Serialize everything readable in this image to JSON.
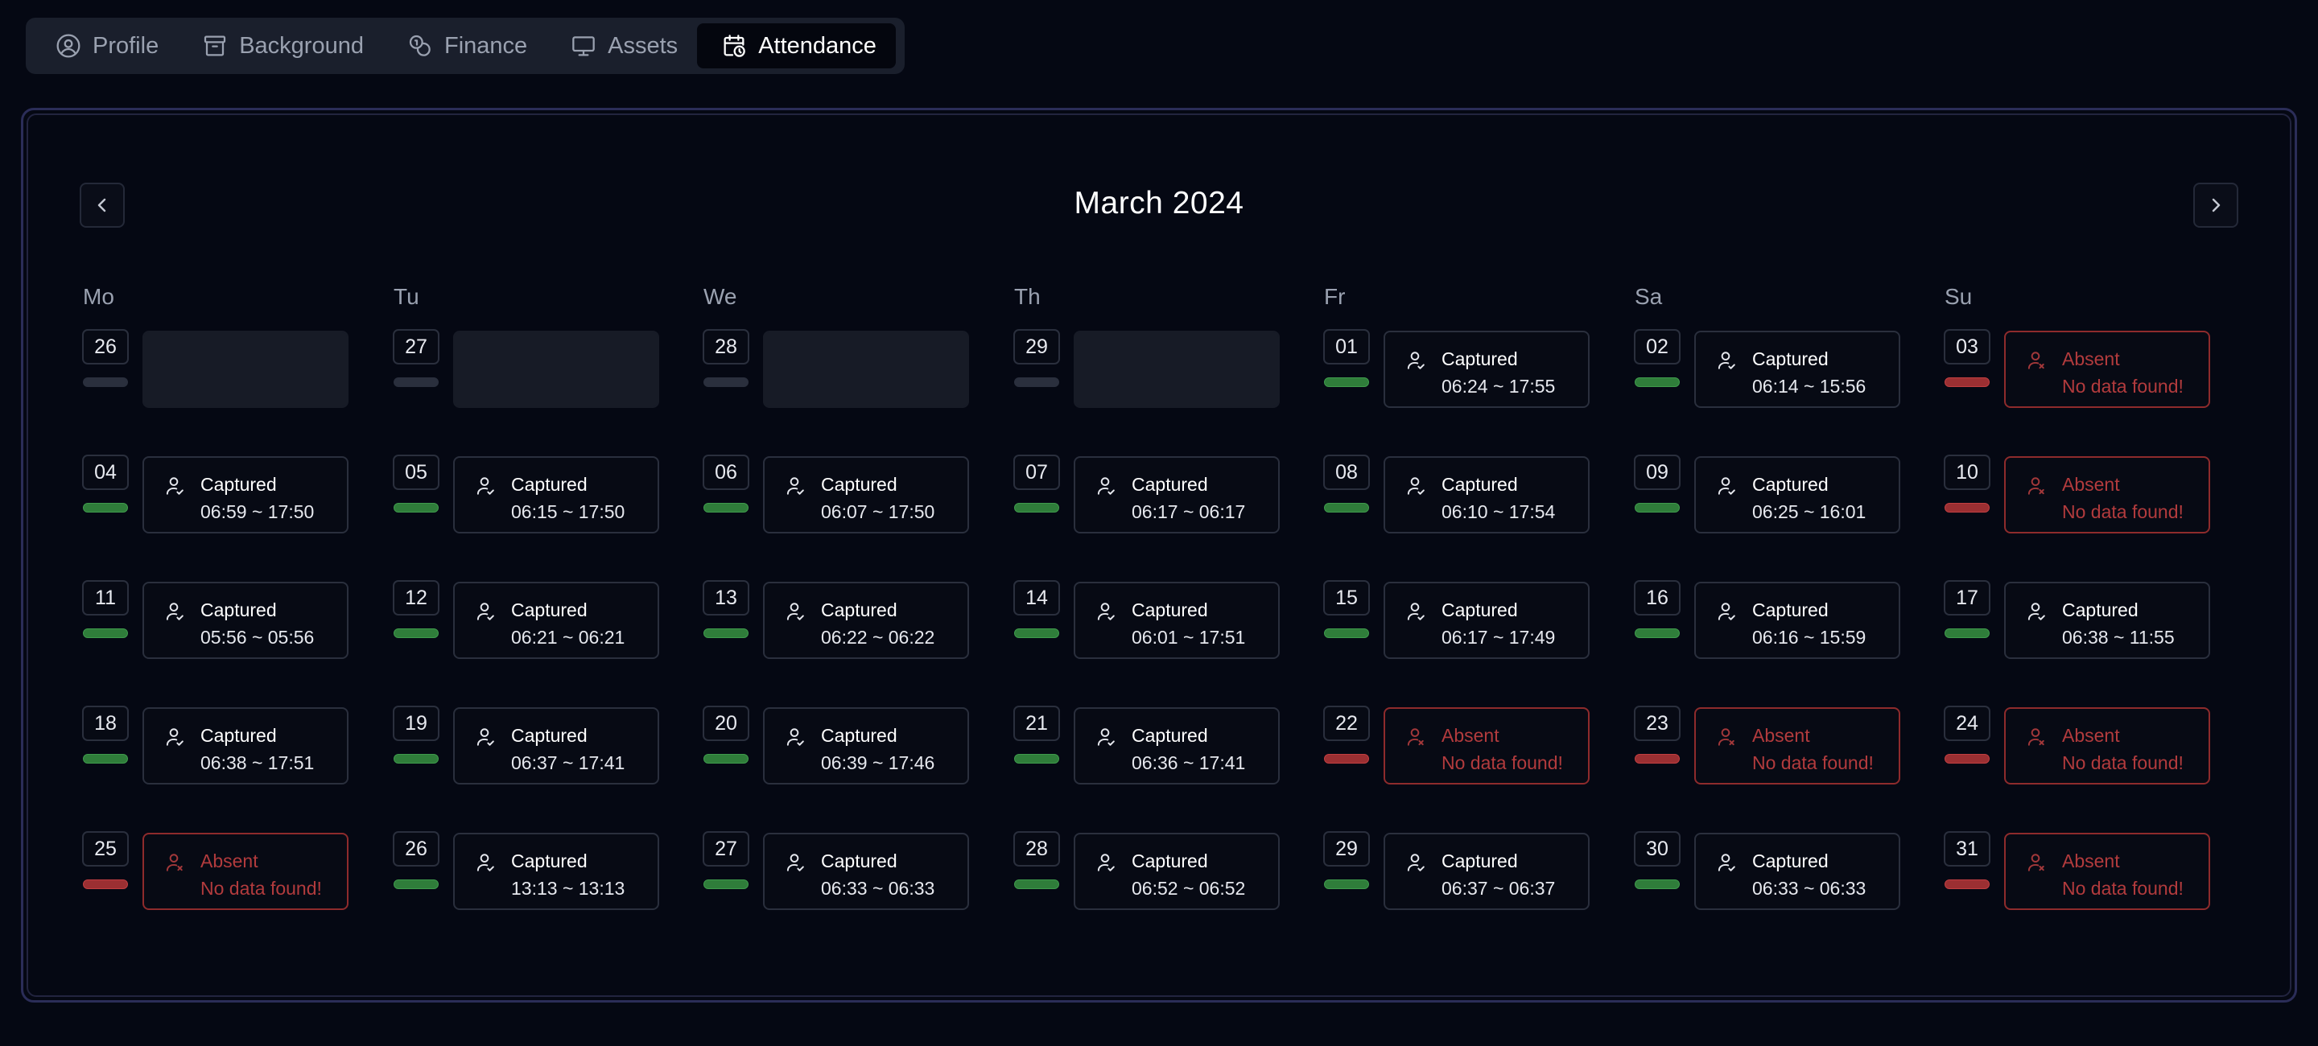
{
  "tabs": [
    {
      "label": "Profile",
      "icon": "user-circle-icon",
      "active": false
    },
    {
      "label": "Background",
      "icon": "archive-icon",
      "active": false
    },
    {
      "label": "Finance",
      "icon": "coins-icon",
      "active": false
    },
    {
      "label": "Assets",
      "icon": "monitor-icon",
      "active": false
    },
    {
      "label": "Attendance",
      "icon": "calendar-clock-icon",
      "active": true
    }
  ],
  "calendar": {
    "month_title": "March 2024",
    "weekdays": [
      "Mo",
      "Tu",
      "We",
      "Th",
      "Fr",
      "Sa",
      "Su"
    ],
    "weeks": [
      [
        {
          "date": "26",
          "status": "none"
        },
        {
          "date": "27",
          "status": "none"
        },
        {
          "date": "28",
          "status": "none"
        },
        {
          "date": "29",
          "status": "none"
        },
        {
          "date": "01",
          "status": "captured",
          "line1": "Captured",
          "line2": "06:24 ~ 17:55"
        },
        {
          "date": "02",
          "status": "captured",
          "line1": "Captured",
          "line2": "06:14 ~ 15:56"
        },
        {
          "date": "03",
          "status": "absent",
          "line1": "Absent",
          "line2": "No data found!"
        }
      ],
      [
        {
          "date": "04",
          "status": "captured",
          "line1": "Captured",
          "line2": "06:59 ~ 17:50"
        },
        {
          "date": "05",
          "status": "captured",
          "line1": "Captured",
          "line2": "06:15 ~ 17:50"
        },
        {
          "date": "06",
          "status": "captured",
          "line1": "Captured",
          "line2": "06:07 ~ 17:50"
        },
        {
          "date": "07",
          "status": "captured",
          "line1": "Captured",
          "line2": "06:17 ~ 06:17"
        },
        {
          "date": "08",
          "status": "captured",
          "line1": "Captured",
          "line2": "06:10 ~ 17:54"
        },
        {
          "date": "09",
          "status": "captured",
          "line1": "Captured",
          "line2": "06:25 ~ 16:01"
        },
        {
          "date": "10",
          "status": "absent",
          "line1": "Absent",
          "line2": "No data found!"
        }
      ],
      [
        {
          "date": "11",
          "status": "captured",
          "line1": "Captured",
          "line2": "05:56 ~ 05:56"
        },
        {
          "date": "12",
          "status": "captured",
          "line1": "Captured",
          "line2": "06:21 ~ 06:21"
        },
        {
          "date": "13",
          "status": "captured",
          "line1": "Captured",
          "line2": "06:22 ~ 06:22"
        },
        {
          "date": "14",
          "status": "captured",
          "line1": "Captured",
          "line2": "06:01 ~ 17:51"
        },
        {
          "date": "15",
          "status": "captured",
          "line1": "Captured",
          "line2": "06:17 ~ 17:49"
        },
        {
          "date": "16",
          "status": "captured",
          "line1": "Captured",
          "line2": "06:16 ~ 15:59"
        },
        {
          "date": "17",
          "status": "captured",
          "line1": "Captured",
          "line2": "06:38 ~ 11:55"
        }
      ],
      [
        {
          "date": "18",
          "status": "captured",
          "line1": "Captured",
          "line2": "06:38 ~ 17:51"
        },
        {
          "date": "19",
          "status": "captured",
          "line1": "Captured",
          "line2": "06:37 ~ 17:41"
        },
        {
          "date": "20",
          "status": "captured",
          "line1": "Captured",
          "line2": "06:39 ~ 17:46"
        },
        {
          "date": "21",
          "status": "captured",
          "line1": "Captured",
          "line2": "06:36 ~ 17:41"
        },
        {
          "date": "22",
          "status": "absent",
          "line1": "Absent",
          "line2": "No data found!"
        },
        {
          "date": "23",
          "status": "absent",
          "line1": "Absent",
          "line2": "No data found!"
        },
        {
          "date": "24",
          "status": "absent",
          "line1": "Absent",
          "line2": "No data found!"
        }
      ],
      [
        {
          "date": "25",
          "status": "absent",
          "line1": "Absent",
          "line2": "No data found!"
        },
        {
          "date": "26",
          "status": "captured",
          "line1": "Captured",
          "line2": "13:13 ~ 13:13"
        },
        {
          "date": "27",
          "status": "captured",
          "line1": "Captured",
          "line2": "06:33 ~ 06:33"
        },
        {
          "date": "28",
          "status": "captured",
          "line1": "Captured",
          "line2": "06:52 ~ 06:52"
        },
        {
          "date": "29",
          "status": "captured",
          "line1": "Captured",
          "line2": "06:37 ~ 06:37"
        },
        {
          "date": "30",
          "status": "captured",
          "line1": "Captured",
          "line2": "06:33 ~ 06:33"
        },
        {
          "date": "31",
          "status": "absent",
          "line1": "Absent",
          "line2": "No data found!"
        }
      ]
    ]
  },
  "colors": {
    "background": "#050813",
    "captured_green": "#2f7d3a",
    "absent_red": "#9b2f32",
    "panel_border": "#2b2d58"
  }
}
